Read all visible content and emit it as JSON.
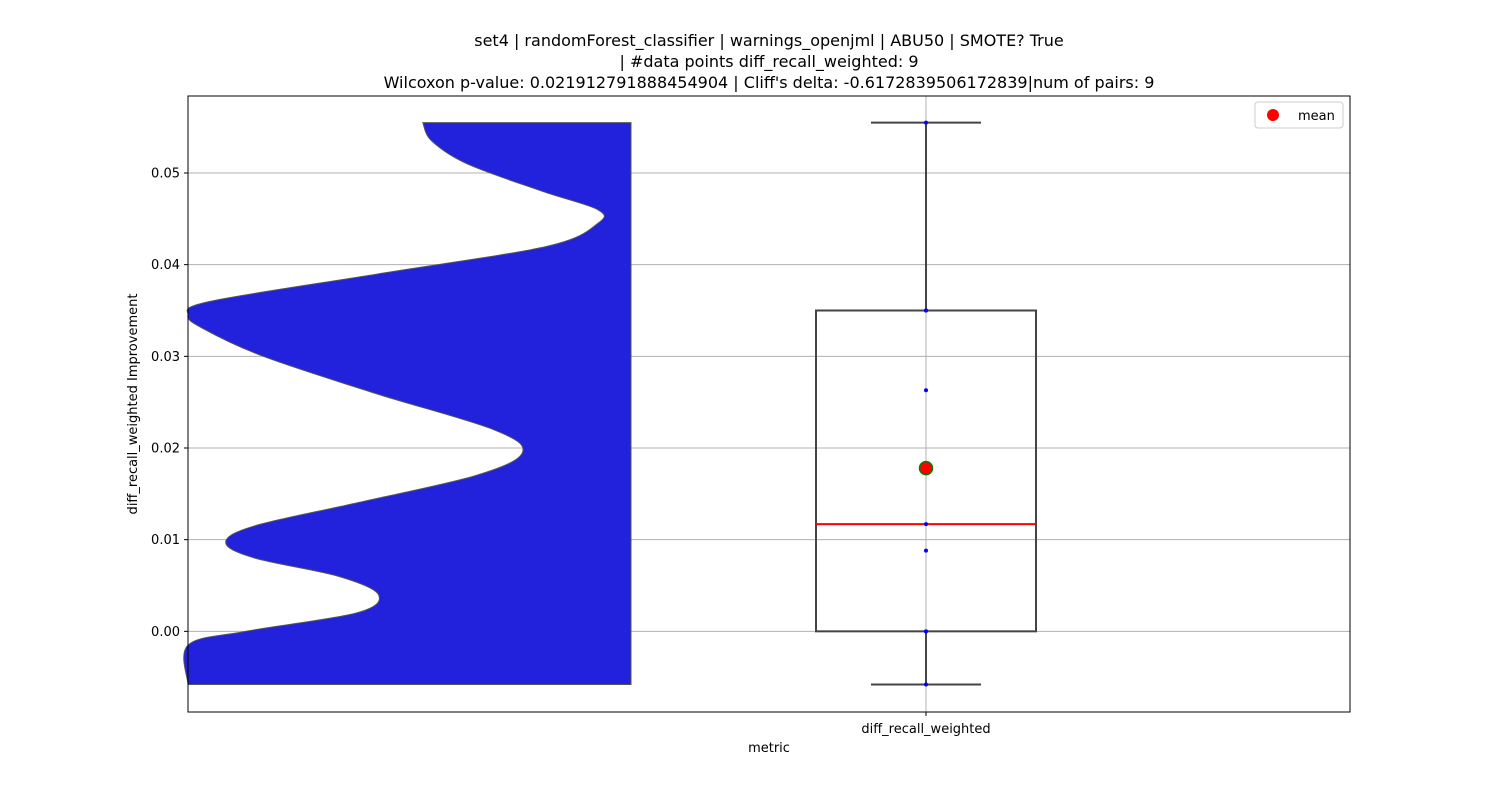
{
  "chart_data": {
    "type": "violin+box",
    "title_lines": [
      "set4 | randomForest_classifier | warnings_openjml | ABU50 | SMOTE? True",
      "| #data points diff_recall_weighted: 9",
      "Wilcoxon p-value: 0.021912791888454904 | Cliff's delta: -0.6172839506172839|num of pairs: 9"
    ],
    "xlabel": "metric",
    "ylabel": "diff_recall_weighted Improvement",
    "categories": [
      "diff_recall_weighted"
    ],
    "ylim": [
      -0.0088,
      0.0584
    ],
    "yticks": [
      0.0,
      0.01,
      0.02,
      0.03,
      0.04,
      0.05
    ],
    "ytick_labels": [
      "0.00",
      "0.01",
      "0.02",
      "0.03",
      "0.04",
      "0.05"
    ],
    "grid": true,
    "legend": {
      "position": "top-right",
      "entries": [
        {
          "label": "mean",
          "color": "#ff0000",
          "marker": "circle"
        }
      ]
    },
    "points": [
      -0.0058,
      0.0,
      0.0,
      0.0088,
      0.0117,
      0.0263,
      0.035,
      0.035,
      0.0555
    ],
    "box": {
      "whisker_low": -0.0058,
      "q1": 0.0,
      "median": 0.0117,
      "q3": 0.035,
      "whisker_high": 0.0555,
      "mean": 0.0178
    },
    "violin": {
      "color": "#2222dd",
      "density_profile": [
        [
          -0.0058,
          1.0
        ],
        [
          -0.0015,
          1.0
        ],
        [
          0.0,
          0.87
        ],
        [
          0.002,
          0.62
        ],
        [
          0.004,
          0.57
        ],
        [
          0.006,
          0.66
        ],
        [
          0.008,
          0.85
        ],
        [
          0.0097,
          0.915
        ],
        [
          0.0115,
          0.85
        ],
        [
          0.014,
          0.62
        ],
        [
          0.017,
          0.35
        ],
        [
          0.0195,
          0.245
        ],
        [
          0.022,
          0.31
        ],
        [
          0.026,
          0.58
        ],
        [
          0.03,
          0.83
        ],
        [
          0.033,
          0.965
        ],
        [
          0.0345,
          1.0
        ],
        [
          0.036,
          0.95
        ],
        [
          0.039,
          0.57
        ],
        [
          0.042,
          0.19
        ],
        [
          0.0445,
          0.075
        ],
        [
          0.046,
          0.075
        ],
        [
          0.048,
          0.2
        ],
        [
          0.051,
          0.37
        ],
        [
          0.0535,
          0.45
        ],
        [
          0.0555,
          0.47
        ]
      ]
    },
    "colors": {
      "box_edge": "#444444",
      "median": "#ff0000",
      "mean_fill": "#ff0000",
      "mean_edge": "#008000",
      "point": "#0000ff",
      "grid": "#b0b0b0"
    }
  }
}
